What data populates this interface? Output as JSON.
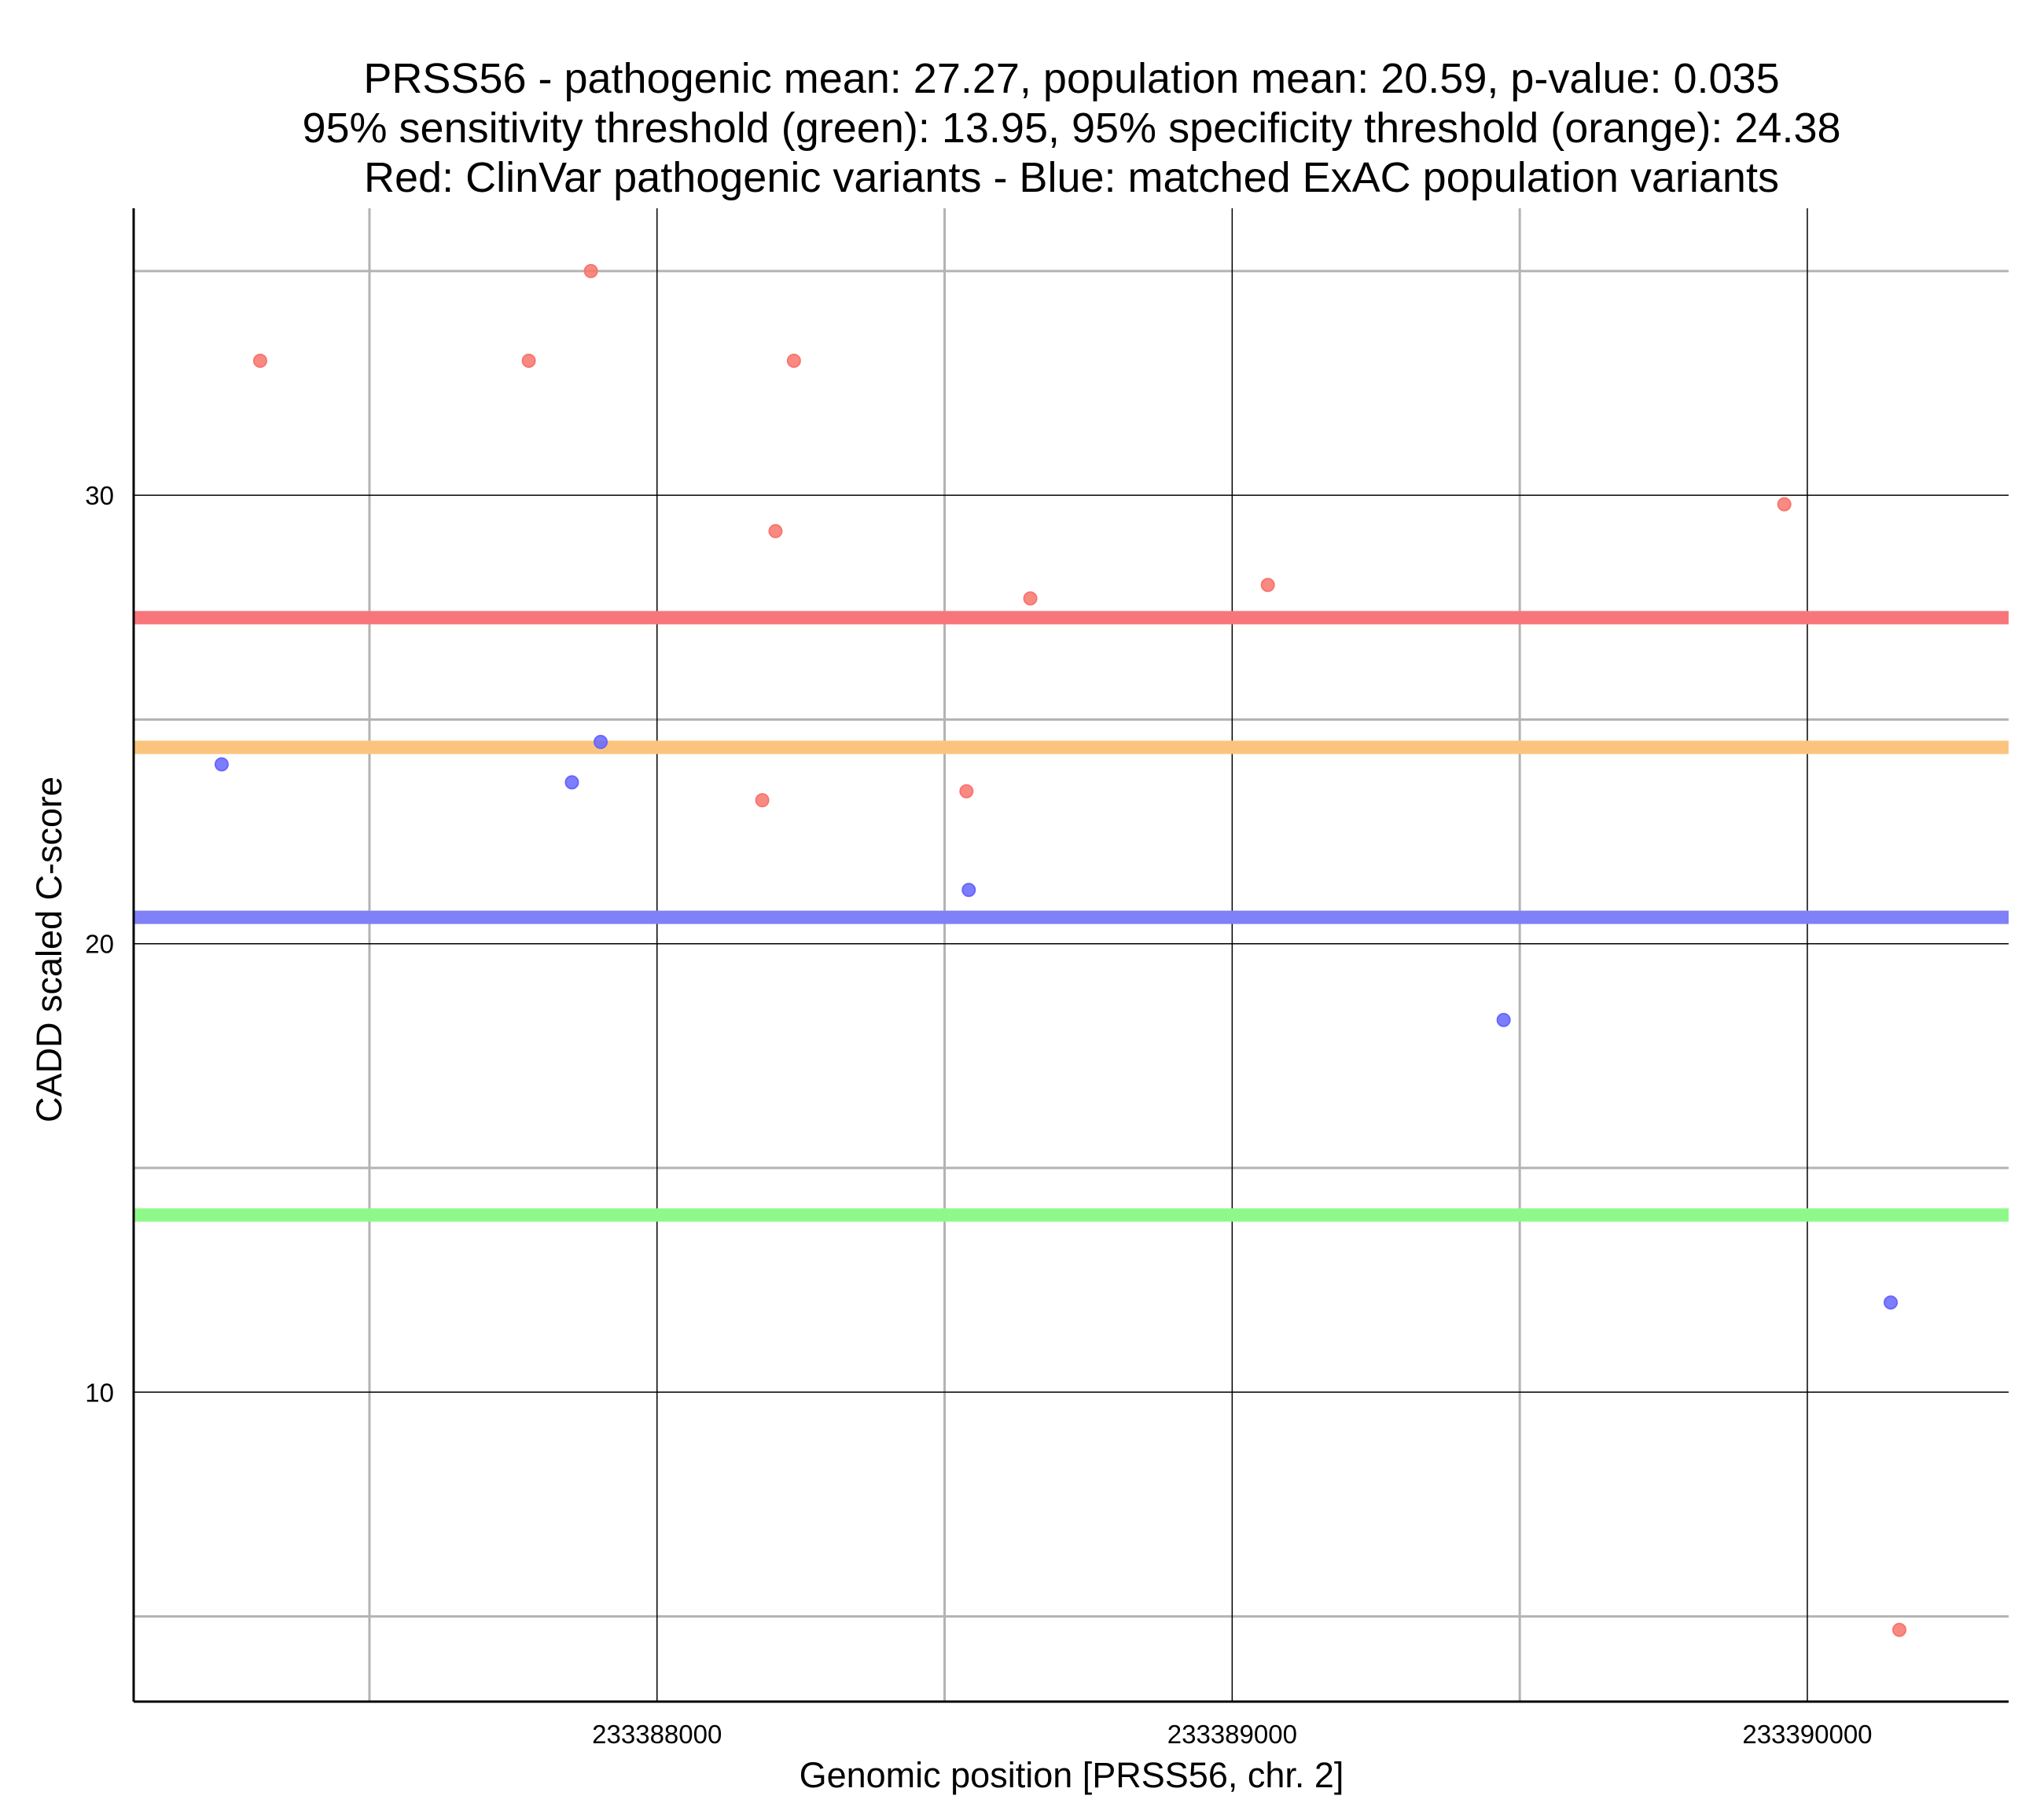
{
  "chart_data": {
    "type": "scatter",
    "title": [
      "PRSS56 - pathogenic mean: 27.27, population mean: 20.59, p-value: 0.035",
      "95% sensitivity threshold (green): 13.95, 95% specificity threshold (orange): 24.38",
      "Red: ClinVar pathogenic variants - Blue: matched ExAC population variants"
    ],
    "xlabel": "Genomic position [PRSS56, chr. 2]",
    "ylabel": "CADD scaled C-score",
    "xlim": [
      233387090,
      233390350
    ],
    "ylim": [
      3.1,
      36.4
    ],
    "x_ticks": [
      233388000,
      233389000,
      233390000
    ],
    "x_tick_labels": [
      "233388000",
      "233389000",
      "233390000"
    ],
    "x_minor_gridlines": [
      233387500,
      233388500,
      233389500
    ],
    "y_ticks": [
      10,
      20,
      30
    ],
    "y_tick_labels": [
      "10",
      "20",
      "30"
    ],
    "y_minor_gridlines": [
      5,
      15,
      25,
      35
    ],
    "grid": true,
    "series": [
      {
        "color": "#f8766d",
        "x": [
          233387310,
          233387777,
          233387885,
          233388238,
          233388206,
          233388649,
          233389062,
          233389960,
          233388183,
          233388538,
          233390160
        ],
        "y": [
          33.0,
          33.0,
          35.0,
          33.0,
          29.2,
          27.7,
          28.0,
          29.8,
          23.2,
          23.4,
          4.7
        ]
      },
      {
        "color": "#6666ff",
        "x": [
          233387243,
          233387852,
          233387902,
          233388542,
          233389472,
          233390145
        ],
        "y": [
          24.0,
          23.6,
          24.5,
          21.2,
          18.3,
          12.0
        ]
      }
    ],
    "reference_lines": [
      {
        "value": 27.27,
        "color": "#f8767b"
      },
      {
        "value": 24.38,
        "color": "#fbc47e"
      },
      {
        "value": 20.59,
        "color": "#8080f8"
      },
      {
        "value": 13.95,
        "color": "#8ef98a"
      }
    ]
  }
}
